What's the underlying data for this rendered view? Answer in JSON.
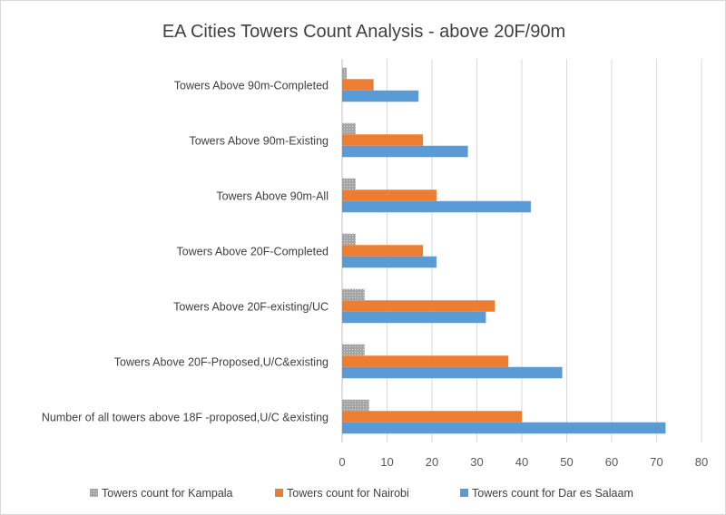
{
  "chart_data": {
    "type": "bar",
    "orientation": "horizontal",
    "title": "EA Cities Towers Count Analysis - above 20F/90m",
    "xlabel": "",
    "ylabel": "",
    "xlim": [
      0,
      80
    ],
    "x_ticks": [
      "0",
      "10",
      "20",
      "30",
      "40",
      "50",
      "60",
      "70",
      "80"
    ],
    "grid": "vertical",
    "legend_position": "bottom",
    "categories": [
      "Towers Above 90m-Completed",
      "Towers Above 90m-Existing",
      "Towers Above 90m-All",
      "Towers Above 20F-Completed",
      "Towers Above 20F-existing/UC",
      "Towers Above 20F-Proposed,U/C&existing",
      "Number of all towers above 18F -proposed,U/C &existing"
    ],
    "series": [
      {
        "name": "Towers count for Kampala",
        "color": "#a5a5a5",
        "pattern": "dotted",
        "values": [
          1,
          3,
          3,
          3,
          5,
          5,
          6
        ]
      },
      {
        "name": "Towers count for Nairobi",
        "color": "#ed7d31",
        "values": [
          7,
          18,
          21,
          18,
          34,
          37,
          40
        ]
      },
      {
        "name": "Towers count for Dar es Salaam",
        "color": "#5b9bd5",
        "values": [
          17,
          28,
          42,
          21,
          32,
          49,
          72
        ]
      }
    ]
  }
}
